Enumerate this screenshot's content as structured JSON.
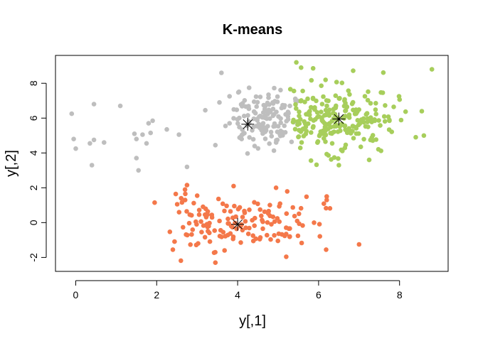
{
  "chart_data": {
    "type": "scatter",
    "title": "K-means",
    "xlabel": "y[,1]",
    "ylabel": "y[,2]",
    "xlim": [
      -0.5,
      9.2
    ],
    "ylim": [
      -2.8,
      9.6
    ],
    "x_ticks": [
      0,
      2,
      4,
      6,
      8
    ],
    "y_ticks": [
      -2,
      0,
      2,
      4,
      6,
      8
    ],
    "x_tick_labels": [
      "0",
      "2",
      "4",
      "6",
      "8"
    ],
    "y_tick_labels": [
      "-2",
      "0",
      "2",
      "4",
      "6",
      "8"
    ],
    "grid": false,
    "legend": "none",
    "series": [
      {
        "color": "#F4784A",
        "generator": {
          "seed": 11,
          "count": 150,
          "cx": 4.0,
          "cy": -0.05,
          "sx": 1.0,
          "sy": 0.75,
          "xmin": 2.3,
          "xmax": 6.3,
          "ymin": -2.3,
          "ymax": 2.2
        },
        "points": [
          [
            1.95,
            1.15
          ],
          [
            2.75,
            2.15
          ],
          [
            2.7,
            1.9
          ],
          [
            3.0,
            1.55
          ],
          [
            3.9,
            2.1
          ],
          [
            4.95,
            2.0
          ],
          [
            6.2,
            1.5
          ],
          [
            6.2,
            1.3
          ],
          [
            2.4,
            -1.55
          ],
          [
            3.45,
            -2.3
          ],
          [
            7.0,
            -1.25
          ]
        ]
      },
      {
        "color": "#BEBEBE",
        "generator": {
          "seed": 23,
          "count": 130,
          "cx": 4.7,
          "cy": 5.9,
          "sx": 0.5,
          "sy": 0.9,
          "xmin": 3.9,
          "xmax": 5.5,
          "ymin": 3.7,
          "ymax": 8.1
        },
        "points": [
          [
            -0.1,
            6.25
          ],
          [
            -0.05,
            4.8
          ],
          [
            0.0,
            4.25
          ],
          [
            0.35,
            4.55
          ],
          [
            0.4,
            3.3
          ],
          [
            0.45,
            4.75
          ],
          [
            0.45,
            6.8
          ],
          [
            0.7,
            4.6
          ],
          [
            1.1,
            6.7
          ],
          [
            1.45,
            5.1
          ],
          [
            1.5,
            3.7
          ],
          [
            1.55,
            3.0
          ],
          [
            1.5,
            4.8
          ],
          [
            1.65,
            5.05
          ],
          [
            1.75,
            4.55
          ],
          [
            1.8,
            5.7
          ],
          [
            1.85,
            5.15
          ],
          [
            1.9,
            5.85
          ],
          [
            2.25,
            5.35
          ],
          [
            2.55,
            5.05
          ],
          [
            2.75,
            3.2
          ],
          [
            3.2,
            6.45
          ],
          [
            3.45,
            4.45
          ],
          [
            3.55,
            6.9
          ],
          [
            3.6,
            8.6
          ],
          [
            3.7,
            5.55
          ],
          [
            3.8,
            7.25
          ],
          [
            3.8,
            5.7
          ]
        ]
      },
      {
        "color": "#A7CE5B",
        "generator": {
          "seed": 37,
          "count": 230,
          "cx": 6.45,
          "cy": 5.95,
          "sx": 0.75,
          "sy": 0.95,
          "xmin": 5.3,
          "xmax": 8.5,
          "ymin": 3.2,
          "ymax": 8.9
        },
        "points": [
          [
            5.45,
            9.2
          ],
          [
            8.8,
            8.8
          ],
          [
            8.55,
            6.4
          ],
          [
            8.4,
            4.9
          ],
          [
            8.6,
            5.0
          ],
          [
            7.25,
            3.6
          ],
          [
            6.5,
            3.3
          ]
        ]
      }
    ],
    "centers": [
      [
        4.0,
        -0.1
      ],
      [
        4.25,
        5.65
      ],
      [
        6.5,
        5.95
      ]
    ],
    "center_marker": "asterisk",
    "center_color": "#000000"
  }
}
